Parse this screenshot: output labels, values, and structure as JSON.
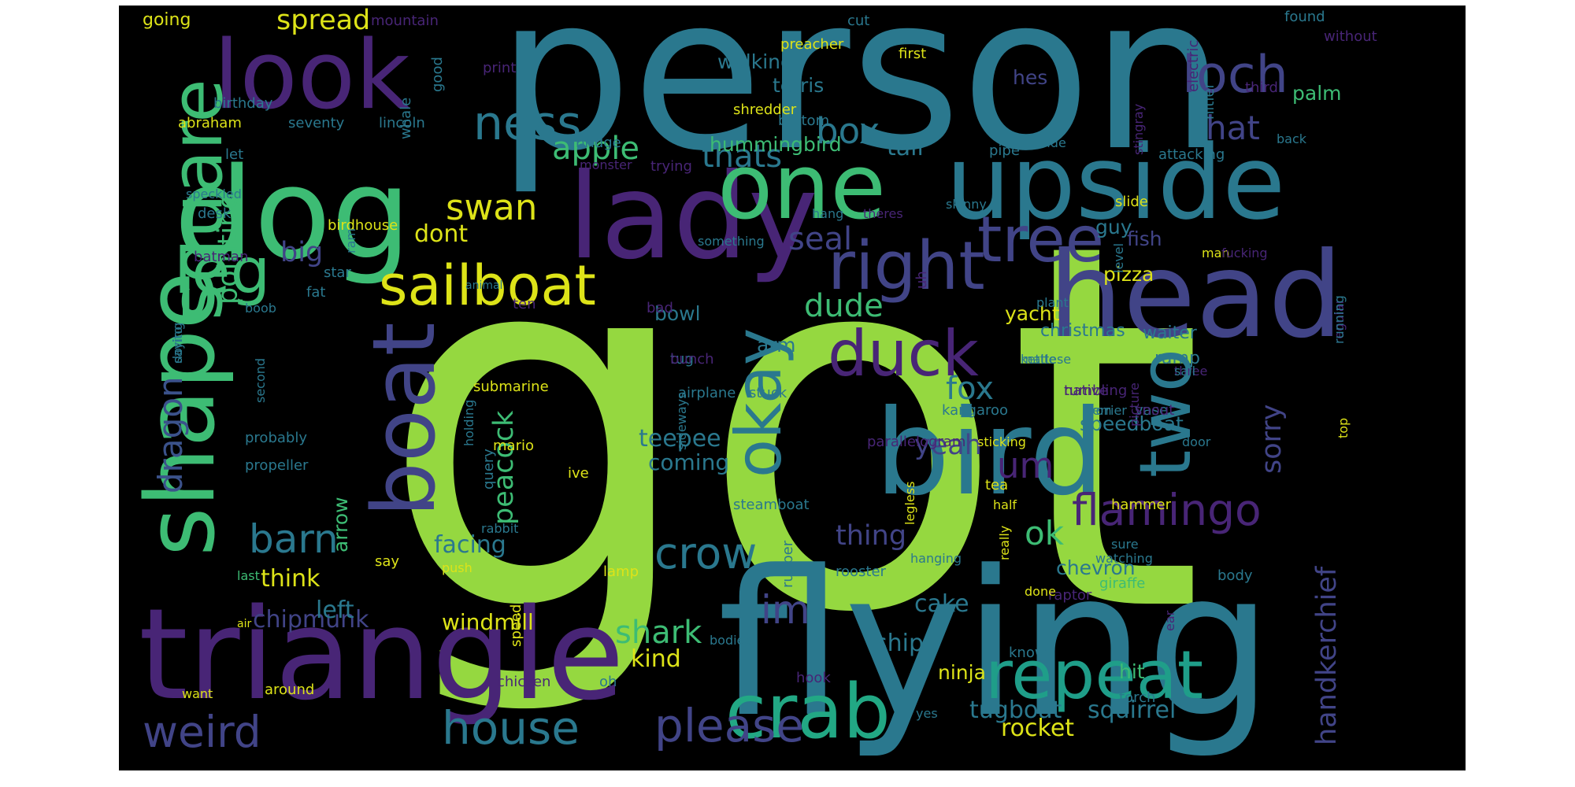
{
  "palette": {
    "background": "#000000",
    "lime": "#95d840",
    "teal": "#2a788e",
    "green": "#3dbc74",
    "indigo": "#414487",
    "purple": "#482576",
    "yellow": "#dde318",
    "blue": "#31688e",
    "sea": "#22a884",
    "slate": "#3b528b",
    "aqua": "#1f9e89"
  },
  "words": [
    {
      "t": "got",
      "c": "lime"
    },
    {
      "t": "person",
      "c": "teal"
    },
    {
      "t": "flying",
      "c": "teal"
    },
    {
      "t": "triangle",
      "c": "purple"
    },
    {
      "t": "bird",
      "c": "teal"
    },
    {
      "t": "head",
      "c": "indigo"
    },
    {
      "t": "dog",
      "c": "green"
    },
    {
      "t": "look",
      "c": "purple"
    },
    {
      "t": "lady",
      "c": "purple"
    },
    {
      "t": "upside",
      "c": "teal"
    },
    {
      "t": "one",
      "c": "green"
    },
    {
      "t": "shape",
      "c": "green"
    },
    {
      "t": "boat",
      "c": "indigo"
    },
    {
      "t": "square",
      "c": "green"
    },
    {
      "t": "right",
      "c": "indigo"
    },
    {
      "t": "sailboat",
      "c": "yellow"
    },
    {
      "t": "crab",
      "c": "sea"
    },
    {
      "t": "repeat",
      "c": "aqua"
    },
    {
      "t": "two",
      "c": "teal"
    },
    {
      "t": "tree",
      "c": "indigo"
    },
    {
      "t": "duck",
      "c": "purple"
    },
    {
      "t": "leg",
      "c": "green"
    },
    {
      "t": "okay",
      "c": "teal"
    },
    {
      "t": "loch",
      "c": "indigo"
    },
    {
      "t": "ness",
      "c": "teal"
    },
    {
      "t": "house",
      "c": "teal"
    },
    {
      "t": "weird",
      "c": "indigo"
    },
    {
      "t": "please",
      "c": "indigo"
    },
    {
      "t": "flamingo",
      "c": "purple"
    },
    {
      "t": "handkerchief",
      "c": "indigo"
    },
    {
      "t": "crow",
      "c": "teal"
    },
    {
      "t": "dragon",
      "c": "slate"
    },
    {
      "t": "barn",
      "c": "teal"
    },
    {
      "t": "swan",
      "c": "yellow"
    },
    {
      "t": "box",
      "c": "teal"
    },
    {
      "t": "apple",
      "c": "green"
    },
    {
      "t": "thats",
      "c": "teal"
    },
    {
      "t": "hat",
      "c": "indigo"
    },
    {
      "t": "seal",
      "c": "indigo"
    },
    {
      "t": "dude",
      "c": "green"
    },
    {
      "t": "fox",
      "c": "teal"
    },
    {
      "t": "shark",
      "c": "green"
    },
    {
      "t": "peacock",
      "c": "green"
    },
    {
      "t": "im",
      "c": "indigo"
    },
    {
      "t": "um",
      "c": "purple"
    },
    {
      "t": "sorry",
      "c": "indigo"
    },
    {
      "t": "pointing",
      "c": "green"
    },
    {
      "t": "spread",
      "c": "yellow"
    },
    {
      "t": "yeah",
      "c": "indigo"
    },
    {
      "t": "ok",
      "c": "green"
    },
    {
      "t": "thing",
      "c": "indigo"
    },
    {
      "t": "big",
      "c": "indigo"
    },
    {
      "t": "dont",
      "c": "yellow"
    },
    {
      "t": "tetris",
      "c": "teal"
    },
    {
      "t": "walking",
      "c": "teal"
    },
    {
      "t": "hummingbird",
      "c": "green"
    },
    {
      "t": "tail",
      "c": "teal"
    },
    {
      "t": "palm",
      "c": "green"
    },
    {
      "t": "hes",
      "c": "indigo"
    },
    {
      "t": "speedboat",
      "c": "teal"
    },
    {
      "t": "teepee",
      "c": "teal"
    },
    {
      "t": "coming",
      "c": "teal"
    },
    {
      "t": "rocket",
      "c": "yellow"
    },
    {
      "t": "squirrel",
      "c": "teal"
    },
    {
      "t": "tugboat",
      "c": "teal"
    },
    {
      "t": "chipmunk",
      "c": "indigo"
    },
    {
      "t": "windmill",
      "c": "yellow"
    },
    {
      "t": "think",
      "c": "yellow"
    },
    {
      "t": "left",
      "c": "teal"
    },
    {
      "t": "facing",
      "c": "teal"
    },
    {
      "t": "ship",
      "c": "teal"
    },
    {
      "t": "cake",
      "c": "teal"
    },
    {
      "t": "chevron",
      "c": "teal"
    },
    {
      "t": "yacht",
      "c": "yellow"
    },
    {
      "t": "arrow",
      "c": "green"
    },
    {
      "t": "kind",
      "c": "yellow"
    },
    {
      "t": "ninja",
      "c": "yellow"
    },
    {
      "t": "hit",
      "c": "green"
    },
    {
      "t": "fish",
      "c": "indigo"
    },
    {
      "t": "pizza",
      "c": "yellow"
    },
    {
      "t": "guy",
      "c": "teal"
    },
    {
      "t": "arm",
      "c": "teal"
    },
    {
      "t": "bowl",
      "c": "teal"
    },
    {
      "t": "ramp",
      "c": "teal"
    },
    {
      "t": "waiter",
      "c": "teal"
    },
    {
      "t": "christmas",
      "c": "teal"
    },
    {
      "t": "going",
      "c": "yellow"
    },
    {
      "t": "mountain",
      "c": "purple"
    },
    {
      "t": "cut",
      "c": "teal"
    },
    {
      "t": "preacher",
      "c": "yellow"
    },
    {
      "t": "first",
      "c": "yellow"
    },
    {
      "t": "found",
      "c": "teal"
    },
    {
      "t": "without",
      "c": "purple"
    },
    {
      "t": "print",
      "c": "purple"
    },
    {
      "t": "good",
      "c": "teal"
    },
    {
      "t": "electric",
      "c": "purple"
    },
    {
      "t": "hitler",
      "c": "teal"
    },
    {
      "t": "third",
      "c": "purple"
    },
    {
      "t": "birthday",
      "c": "teal"
    },
    {
      "t": "shredder",
      "c": "yellow"
    },
    {
      "t": "bottom",
      "c": "teal"
    },
    {
      "t": "abraham",
      "c": "yellow"
    },
    {
      "t": "seventy",
      "c": "teal"
    },
    {
      "t": "lincoln",
      "c": "teal"
    },
    {
      "t": "whale",
      "c": "teal"
    },
    {
      "t": "bridge",
      "c": "teal"
    },
    {
      "t": "let",
      "c": "teal"
    },
    {
      "t": "pipe",
      "c": "teal"
    },
    {
      "t": "side",
      "c": "teal"
    },
    {
      "t": "stingray",
      "c": "purple"
    },
    {
      "t": "attacking",
      "c": "teal"
    },
    {
      "t": "back",
      "c": "teal"
    },
    {
      "t": "monster",
      "c": "purple"
    },
    {
      "t": "trying",
      "c": "purple"
    },
    {
      "t": "speckled",
      "c": "teal"
    },
    {
      "t": "desk",
      "c": "teal"
    },
    {
      "t": "hang",
      "c": "teal"
    },
    {
      "t": "theres",
      "c": "purple"
    },
    {
      "t": "skinny",
      "c": "teal"
    },
    {
      "t": "slide",
      "c": "yellow"
    },
    {
      "t": "birdhouse",
      "c": "yellow"
    },
    {
      "t": "something",
      "c": "teal"
    },
    {
      "t": "man",
      "c": "yellow"
    },
    {
      "t": "batman",
      "c": "purple"
    },
    {
      "t": "star",
      "c": "teal"
    },
    {
      "t": "ram",
      "c": "teal"
    },
    {
      "t": "uh",
      "c": "purple"
    },
    {
      "t": "fucking",
      "c": "purple"
    },
    {
      "t": "fat",
      "c": "teal"
    },
    {
      "t": "animal",
      "c": "teal"
    },
    {
      "t": "level",
      "c": "teal"
    },
    {
      "t": "bad",
      "c": "purple"
    },
    {
      "t": "plant",
      "c": "teal"
    },
    {
      "t": "boob",
      "c": "teal"
    },
    {
      "t": "ten",
      "c": "purple"
    },
    {
      "t": "tug",
      "c": "teal"
    },
    {
      "t": "kettle",
      "c": "teal"
    },
    {
      "t": "three",
      "c": "purple"
    },
    {
      "t": "tumbling",
      "c": "purple"
    },
    {
      "t": "saying",
      "c": "teal"
    },
    {
      "t": "regular",
      "c": "purple"
    },
    {
      "t": "vase",
      "c": "teal"
    },
    {
      "t": "iron",
      "c": "teal"
    },
    {
      "t": "stuck",
      "c": "teal"
    },
    {
      "t": "kangaroo",
      "c": "teal"
    },
    {
      "t": "submarine",
      "c": "yellow"
    },
    {
      "t": "airplane",
      "c": "teal"
    },
    {
      "t": "door",
      "c": "teal"
    },
    {
      "t": "second",
      "c": "teal"
    },
    {
      "t": "holding",
      "c": "teal"
    },
    {
      "t": "top",
      "c": "yellow"
    },
    {
      "t": "sideways",
      "c": "teal"
    },
    {
      "t": "parallelogram",
      "c": "purple"
    },
    {
      "t": "picture",
      "c": "purple"
    },
    {
      "t": "sticking",
      "c": "yellow"
    },
    {
      "t": "probably",
      "c": "teal"
    },
    {
      "t": "propeller",
      "c": "teal"
    },
    {
      "t": "tea",
      "c": "yellow"
    },
    {
      "t": "hammer",
      "c": "yellow"
    },
    {
      "t": "legless",
      "c": "yellow"
    },
    {
      "t": "rabbit",
      "c": "teal"
    },
    {
      "t": "rooster",
      "c": "teal"
    },
    {
      "t": "raptor",
      "c": "purple"
    },
    {
      "t": "giraffe",
      "c": "green"
    },
    {
      "t": "mario",
      "c": "yellow"
    },
    {
      "t": "query",
      "c": "teal"
    },
    {
      "t": "ive",
      "c": "yellow"
    },
    {
      "t": "steamboat",
      "c": "teal"
    },
    {
      "t": "half",
      "c": "yellow"
    },
    {
      "t": "say",
      "c": "yellow"
    },
    {
      "t": "push",
      "c": "yellow"
    },
    {
      "t": "lamp",
      "c": "yellow"
    },
    {
      "t": "watching",
      "c": "teal"
    },
    {
      "t": "last",
      "c": "green"
    },
    {
      "t": "air",
      "c": "yellow"
    },
    {
      "t": "sure",
      "c": "teal"
    },
    {
      "t": "really",
      "c": "yellow"
    },
    {
      "t": "body",
      "c": "teal"
    },
    {
      "t": "done",
      "c": "yellow"
    },
    {
      "t": "rubber",
      "c": "teal"
    },
    {
      "t": "hanging",
      "c": "teal"
    },
    {
      "t": "know",
      "c": "teal"
    },
    {
      "t": "ear",
      "c": "purple"
    },
    {
      "t": "hook",
      "c": "purple"
    },
    {
      "t": "speed",
      "c": "yellow"
    },
    {
      "t": "chicken",
      "c": "purple"
    },
    {
      "t": "bodied",
      "c": "teal"
    },
    {
      "t": "want",
      "c": "yellow"
    },
    {
      "t": "yes",
      "c": "teal"
    },
    {
      "t": "around",
      "c": "yellow"
    },
    {
      "t": "oh",
      "c": "teal"
    },
    {
      "t": "torch",
      "c": "teal"
    },
    {
      "t": "bunch",
      "c": "purple"
    },
    {
      "t": "maltese",
      "c": "teal"
    },
    {
      "t": "sail",
      "c": "teal"
    },
    {
      "t": "native",
      "c": "purple"
    },
    {
      "t": "dorito",
      "c": "teal"
    },
    {
      "t": "running",
      "c": "teal"
    },
    {
      "t": "snout",
      "c": "purple"
    },
    {
      "t": "terrier",
      "c": "teal"
    }
  ]
}
